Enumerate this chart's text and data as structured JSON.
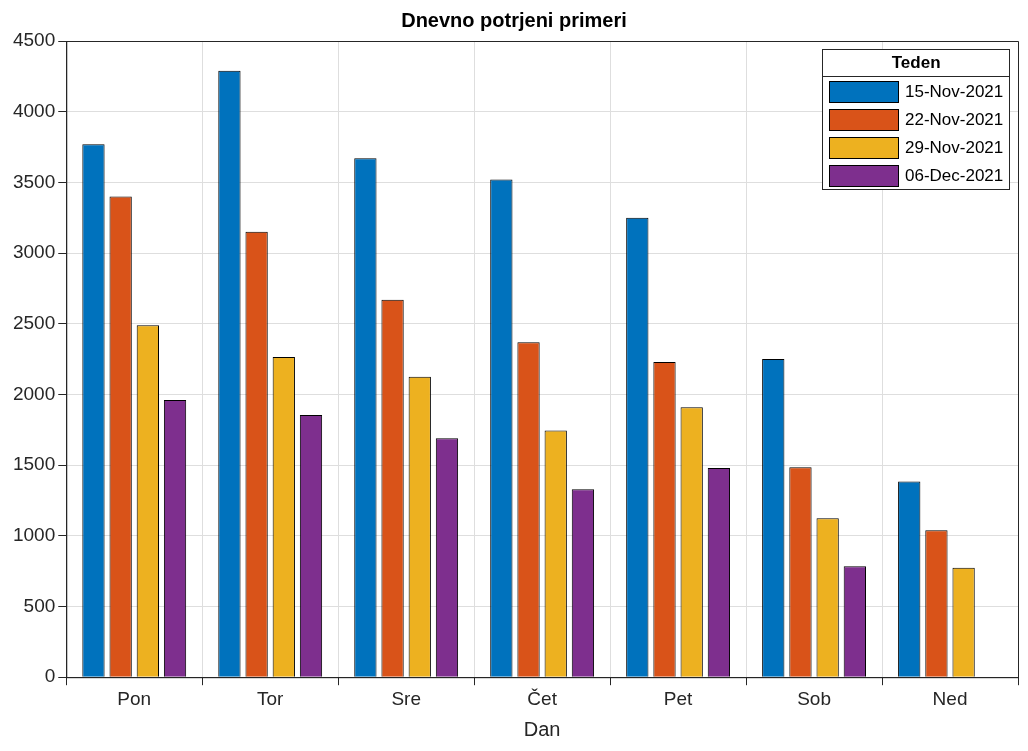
{
  "chart_data": {
    "type": "bar",
    "title": "Dnevno potrjeni primeri",
    "xlabel": "Dan",
    "legend_title": "Teden",
    "categories": [
      "Pon",
      "Tor",
      "Sre",
      "Čet",
      "Pet",
      "Sob",
      "Ned"
    ],
    "series": [
      {
        "name": "15-Nov-2021",
        "color": "#0072bd",
        "values": [
          3770,
          4290,
          3670,
          3520,
          3250,
          2250,
          1385
        ]
      },
      {
        "name": "22-Nov-2021",
        "color": "#d95319",
        "values": [
          3400,
          3150,
          2670,
          2370,
          2230,
          1485,
          1040
        ]
      },
      {
        "name": "29-Nov-2021",
        "color": "#edb120",
        "values": [
          2490,
          2265,
          2125,
          1745,
          1910,
          1125,
          775
        ]
      },
      {
        "name": "06-Dec-2021",
        "color": "#7e2f8e",
        "values": [
          1960,
          1855,
          1690,
          1330,
          1480,
          785,
          null
        ]
      }
    ],
    "ylim": [
      0,
      4500
    ],
    "yticks": [
      0,
      500,
      1000,
      1500,
      2000,
      2500,
      3000,
      3500,
      4000,
      4500
    ],
    "grid": true,
    "legend": "top right"
  }
}
